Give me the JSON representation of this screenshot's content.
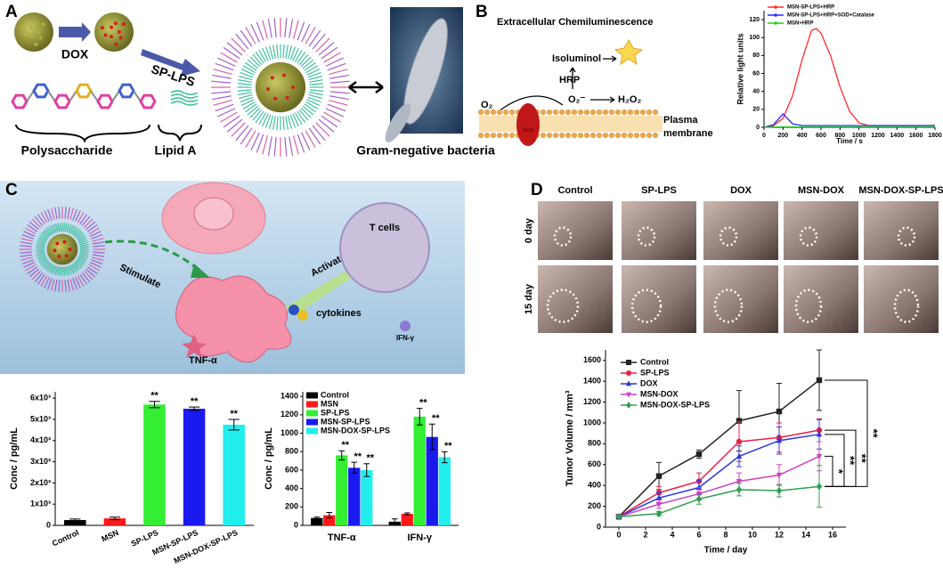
{
  "panel_a": {
    "label": "A",
    "dox": "DOX",
    "sp_lps": "SP-LPS",
    "polysaccharide": "Polysaccharide",
    "lipid_a": "Lipid A",
    "bacteria": "Gram-negative bacteria"
  },
  "panel_b": {
    "label": "B",
    "title": "Extracellular Chemiluminescence",
    "isoluminol": "Isoluminol",
    "hrp": "HRP",
    "o2": "O₂",
    "superoxide": "O₂⁻",
    "h2o2": "H₂O₂",
    "nox": "Nox",
    "membrane": [
      "Plasma",
      "membrane"
    ]
  },
  "panel_c": {
    "label": "C",
    "stimulate": "Stimulate",
    "activate": "Activate",
    "t_cells": "T cells",
    "cytokines": "cytokines",
    "ifn": "IFN-γ",
    "tnf": "TNF-α"
  },
  "panel_d": {
    "label": "D",
    "groups": [
      "Control",
      "SP-LPS",
      "DOX",
      "MSN-DOX",
      "MSN-DOX-SP-LPS"
    ],
    "days": [
      "0 day",
      "15 day"
    ]
  },
  "chart_data": [
    {
      "type": "line",
      "x_label": "Time / s",
      "y_label": "Relative light units",
      "legend": "upper left",
      "x": [
        0,
        100,
        200,
        300,
        400,
        500,
        550,
        600,
        700,
        800,
        900,
        1000,
        1100,
        1200,
        1400,
        1600,
        1800
      ],
      "xlim": [
        0,
        1800
      ],
      "xticks": [
        0,
        200,
        400,
        600,
        800,
        1000,
        1200,
        1400,
        1600,
        1800
      ],
      "ylim": [
        0,
        130
      ],
      "yticks": [
        0,
        20,
        40,
        60,
        80,
        100,
        120
      ],
      "series": [
        {
          "name": "MSN-SP-LPS+HRP",
          "color": "#ff2a2a",
          "values": [
            0,
            2,
            10,
            35,
            75,
            108,
            110,
            105,
            80,
            45,
            18,
            5,
            2,
            2,
            2,
            2,
            2
          ]
        },
        {
          "name": "MSN-SP-LPS+HRP+SOD+Catalase",
          "color": "#2a2aff",
          "values": [
            0,
            3,
            15,
            4,
            2,
            2,
            2,
            2,
            2,
            2,
            2,
            2,
            2,
            2,
            2,
            2,
            2
          ]
        },
        {
          "name": "MSN+HRP",
          "color": "#22cc22",
          "values": [
            0,
            0.5,
            0.5,
            0.5,
            0.5,
            0.5,
            0.5,
            0.5,
            0.5,
            0.5,
            0.5,
            0.5,
            0.5,
            0.5,
            0.5,
            0.5,
            0.5
          ]
        }
      ]
    },
    {
      "type": "bar",
      "y_label": "Conc / pg/mL",
      "categories": [
        "Control",
        "MSN",
        "SP-LPS",
        "MSN-SP-LPS",
        "MSN-DOX-SP-LPS"
      ],
      "values": [
        250,
        330,
        5700,
        5500,
        4750
      ],
      "errors": [
        50,
        60,
        150,
        80,
        250
      ],
      "colors": [
        "#000000",
        "#ff1a1a",
        "#33ee33",
        "#1a1aee",
        "#22eeee"
      ],
      "significance": [
        null,
        null,
        "**",
        "**",
        "**"
      ],
      "ylim": [
        0,
        6300
      ],
      "yticks": [
        0,
        {
          "value": 1000,
          "label": "1x10³"
        },
        {
          "value": 2000,
          "label": "2x10³"
        },
        {
          "value": 3000,
          "label": "3x10³"
        },
        {
          "value": 4000,
          "label": "4x10³"
        },
        {
          "value": 5000,
          "label": "5x10³"
        },
        {
          "value": 6000,
          "label": "6x10³"
        }
      ]
    },
    {
      "type": "bar",
      "y_label": "Conc / pg/mL",
      "legend": "upper left",
      "categories": [
        "TNF-α",
        "IFN-γ"
      ],
      "ylim": [
        0,
        1450
      ],
      "yticks": [
        0,
        200,
        400,
        600,
        800,
        1000,
        1200,
        1400
      ],
      "series": [
        {
          "name": "Control",
          "color": "#000000",
          "values": [
            80,
            40
          ],
          "errors": [
            10,
            30
          ],
          "significance": [
            null,
            null
          ]
        },
        {
          "name": "MSN",
          "color": "#ff1a1a",
          "values": [
            110,
            125
          ],
          "errors": [
            30,
            10
          ],
          "significance": [
            null,
            null
          ]
        },
        {
          "name": "SP-LPS",
          "color": "#33ee33",
          "values": [
            760,
            1180
          ],
          "errors": [
            50,
            90
          ],
          "significance": [
            "**",
            "**"
          ]
        },
        {
          "name": "MSN-SP-LPS",
          "color": "#1a1aee",
          "values": [
            625,
            960
          ],
          "errors": [
            60,
            140
          ],
          "significance": [
            "**",
            "**"
          ]
        },
        {
          "name": "MSN-DOX-SP-LPS",
          "color": "#22eeee",
          "values": [
            600,
            740
          ],
          "errors": [
            70,
            60
          ],
          "significance": [
            "**",
            "**"
          ]
        }
      ]
    },
    {
      "type": "line",
      "x_label": "Time / day",
      "y_label": "Tumor Volume / mm³",
      "legend": "upper left",
      "x": [
        0,
        3,
        6,
        9,
        12,
        15
      ],
      "xlim": [
        -1,
        17
      ],
      "xticks": [
        0,
        2,
        4,
        6,
        8,
        10,
        12,
        14,
        16
      ],
      "ylim": [
        0,
        1700
      ],
      "yticks": [
        0,
        200,
        400,
        600,
        800,
        1000,
        1200,
        1400,
        1600
      ],
      "comparisons": [
        "**",
        "**",
        "**",
        "*"
      ],
      "series": [
        {
          "name": "Control",
          "color": "#222222",
          "marker": "square",
          "values": [
            100,
            490,
            700,
            1020,
            1110,
            1410
          ],
          "errors": [
            0,
            130,
            40,
            290,
            270,
            290
          ]
        },
        {
          "name": "SP-LPS",
          "color": "#e8204a",
          "marker": "circle",
          "values": [
            100,
            330,
            440,
            820,
            860,
            930
          ],
          "errors": [
            0,
            60,
            80,
            190,
            140,
            110
          ]
        },
        {
          "name": "DOX",
          "color": "#2a3ad8",
          "marker": "triangle-up",
          "values": [
            100,
            280,
            380,
            680,
            830,
            890
          ],
          "errors": [
            0,
            50,
            70,
            100,
            130,
            140
          ]
        },
        {
          "name": "MSN-DOX",
          "color": "#d040c0",
          "marker": "triangle-down",
          "values": [
            100,
            220,
            320,
            440,
            500,
            680
          ],
          "errors": [
            0,
            40,
            60,
            80,
            100,
            140
          ]
        },
        {
          "name": "MSN-DOX-SP-LPS",
          "color": "#30a050",
          "marker": "diamond",
          "values": [
            100,
            130,
            270,
            360,
            350,
            390
          ],
          "errors": [
            0,
            20,
            50,
            60,
            60,
            200
          ]
        }
      ]
    }
  ]
}
